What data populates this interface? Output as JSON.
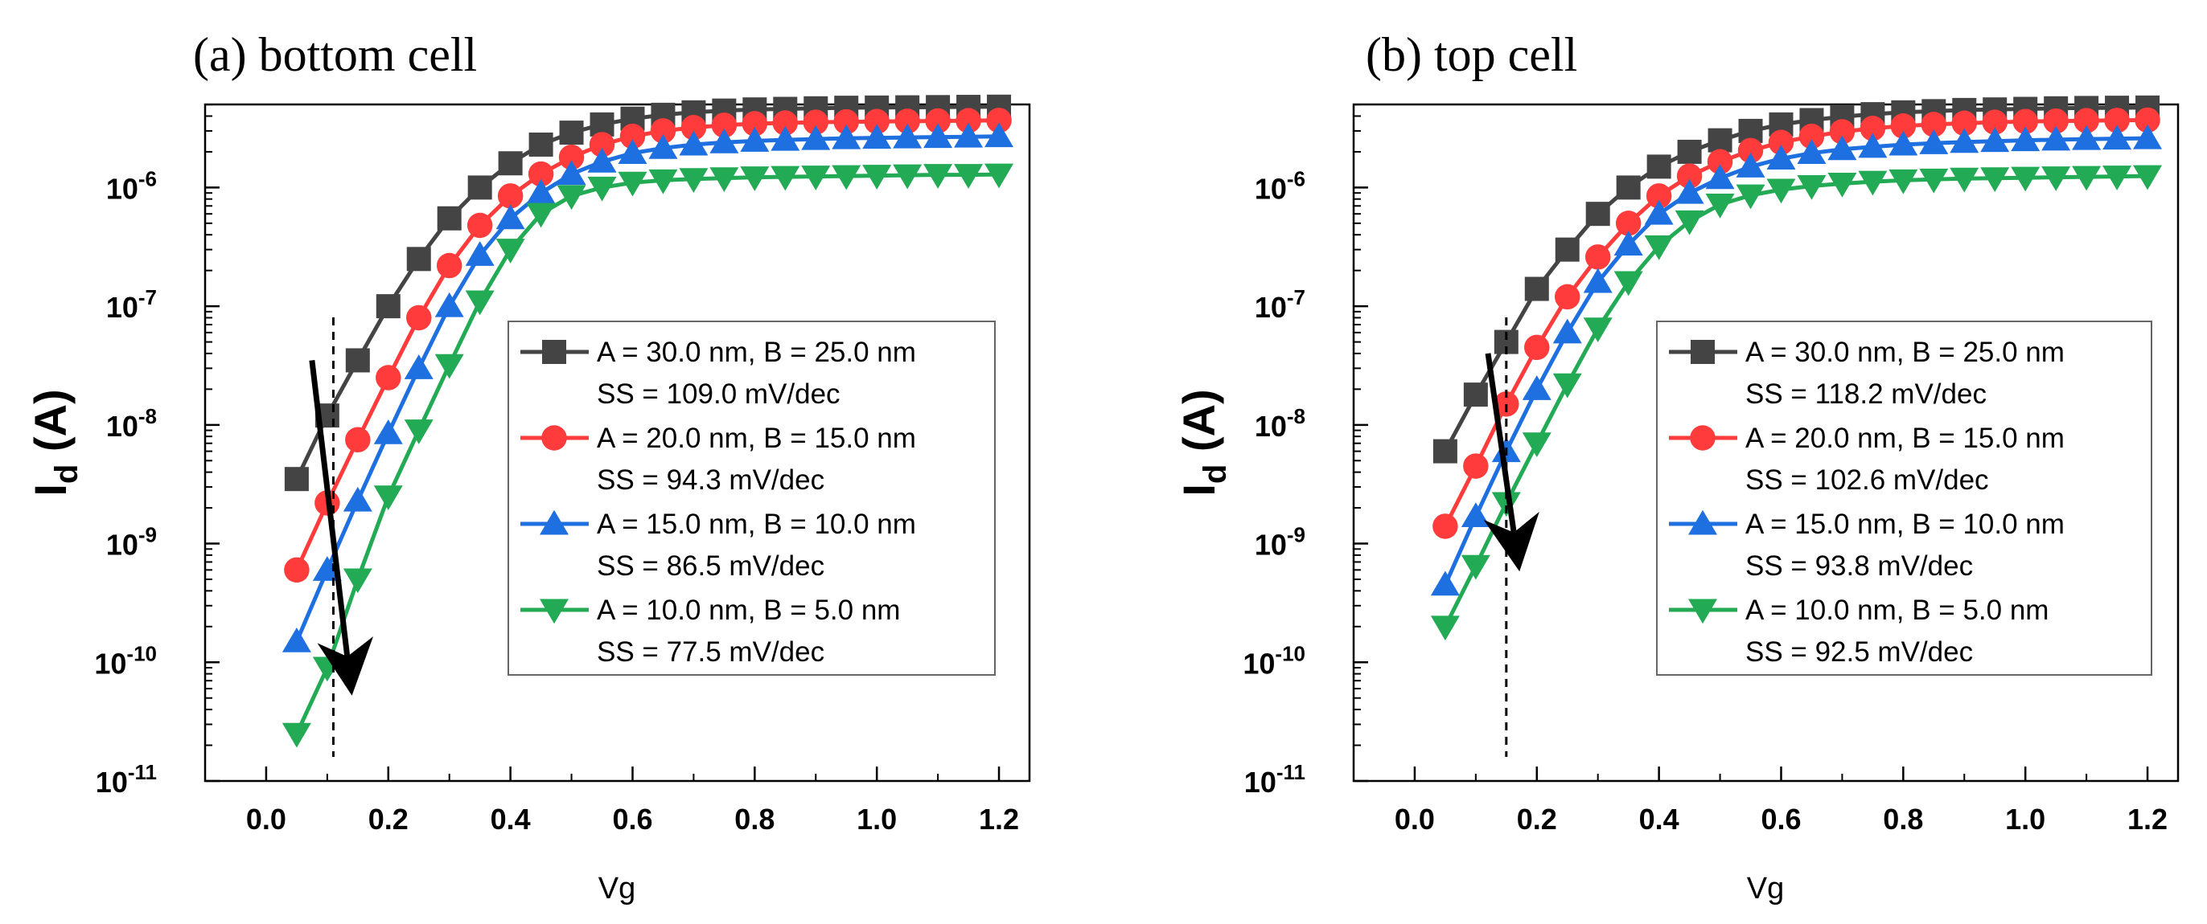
{
  "chart_data": [
    {
      "type": "line",
      "title": "(a) bottom cell",
      "xlabel": "Vg",
      "ylabel_main": "I",
      "ylabel_sub": "d",
      "ylabel_unit": " (A)",
      "xlim": [
        -0.1,
        1.25
      ],
      "ylim_log10": [
        -11,
        -5.3
      ],
      "yscale": "log",
      "grid": false,
      "legend_position": "center-right",
      "xticks": [
        0.0,
        0.2,
        0.4,
        0.6,
        0.8,
        1.0,
        1.2
      ],
      "xtick_labels": [
        "0.0",
        "0.2",
        "0.4",
        "0.6",
        "0.8",
        "1.0",
        "1.2"
      ],
      "yticks_log10": [
        -11,
        -10,
        -9,
        -8,
        -7,
        -6
      ],
      "ytick_base": [
        "10",
        "10",
        "10",
        "10",
        "10",
        "10"
      ],
      "ytick_exp": [
        "-11",
        "-10",
        "-9",
        "-8",
        "-7",
        "-6"
      ],
      "x": [
        0.05,
        0.1,
        0.15,
        0.2,
        0.25,
        0.3,
        0.35,
        0.4,
        0.45,
        0.5,
        0.55,
        0.6,
        0.65,
        0.7,
        0.75,
        0.8,
        0.85,
        0.9,
        0.95,
        1.0,
        1.05,
        1.1,
        1.15,
        1.2
      ],
      "series": [
        {
          "name": "A = 30.0 nm, B = 25.0 nm",
          "ss": "SS = 109.0 mV/dec",
          "color": "#444444",
          "marker": "square",
          "values": [
            3.5e-09,
            1.2e-08,
            3.5e-08,
            1e-07,
            2.5e-07,
            5.5e-07,
            1e-06,
            1.6e-06,
            2.3e-06,
            2.9e-06,
            3.4e-06,
            3.8e-06,
            4.1e-06,
            4.3e-06,
            4.45e-06,
            4.55e-06,
            4.6e-06,
            4.65e-06,
            4.7e-06,
            4.72e-06,
            4.74e-06,
            4.76e-06,
            4.78e-06,
            4.8e-06
          ]
        },
        {
          "name": "A = 20.0 nm, B = 15.0 nm",
          "ss": "SS = 94.3 mV/dec",
          "color": "#ff3b3b",
          "marker": "circle",
          "values": [
            6e-10,
            2.2e-09,
            7.5e-09,
            2.5e-08,
            8e-08,
            2.2e-07,
            4.8e-07,
            8.5e-07,
            1.3e-06,
            1.8e-06,
            2.3e-06,
            2.7e-06,
            3e-06,
            3.2e-06,
            3.35e-06,
            3.45e-06,
            3.5e-06,
            3.55e-06,
            3.58e-06,
            3.6e-06,
            3.62e-06,
            3.64e-06,
            3.66e-06,
            3.68e-06
          ]
        },
        {
          "name": "A = 15.0 nm, B = 10.0 nm",
          "ss": "SS = 86.5 mV/dec",
          "color": "#1e6fe0",
          "marker": "triangle-up",
          "values": [
            1.5e-10,
            6e-10,
            2.3e-09,
            8.5e-09,
            3e-08,
            1e-07,
            2.7e-07,
            5.5e-07,
            9e-07,
            1.3e-06,
            1.65e-06,
            1.95e-06,
            2.15e-06,
            2.3e-06,
            2.4e-06,
            2.47e-06,
            2.52e-06,
            2.56e-06,
            2.6e-06,
            2.62e-06,
            2.64e-06,
            2.66e-06,
            2.68e-06,
            2.7e-06
          ]
        },
        {
          "name": "A = 10.0 nm, B = 5.0 nm",
          "ss": "SS = 77.5 mV/dec",
          "color": "#22aa55",
          "marker": "triangle-down",
          "values": [
            2.5e-11,
            9e-11,
            5e-10,
            2.5e-09,
            9e-09,
            3.2e-08,
            1.1e-07,
            3e-07,
            6e-07,
            8.5e-07,
            1e-06,
            1.1e-06,
            1.15e-06,
            1.18e-06,
            1.2e-06,
            1.22e-06,
            1.23e-06,
            1.24e-06,
            1.25e-06,
            1.26e-06,
            1.27e-06,
            1.28e-06,
            1.28e-06,
            1.29e-06
          ]
        }
      ],
      "annotations": {
        "dashed_line_x": 0.11,
        "arrow_start": {
          "x": 0.075,
          "y": 3.5e-08
        },
        "arrow_end": {
          "x": 0.135,
          "y": 9e-11
        }
      }
    },
    {
      "type": "line",
      "title": "(b) top cell",
      "xlabel": "Vg",
      "ylabel_main": "I",
      "ylabel_sub": "d",
      "ylabel_unit": " (A)",
      "xlim": [
        -0.1,
        1.25
      ],
      "ylim_log10": [
        -11,
        -5.3
      ],
      "yscale": "log",
      "grid": false,
      "legend_position": "center-right",
      "xticks": [
        0.0,
        0.2,
        0.4,
        0.6,
        0.8,
        1.0,
        1.2
      ],
      "xtick_labels": [
        "0.0",
        "0.2",
        "0.4",
        "0.6",
        "0.8",
        "1.0",
        "1.2"
      ],
      "yticks_log10": [
        -11,
        -10,
        -9,
        -8,
        -7,
        -6
      ],
      "ytick_base": [
        "10",
        "10",
        "10",
        "10",
        "10",
        "10"
      ],
      "ytick_exp": [
        "-11",
        "-10",
        "-9",
        "-8",
        "-7",
        "-6"
      ],
      "x": [
        0.05,
        0.1,
        0.15,
        0.2,
        0.25,
        0.3,
        0.35,
        0.4,
        0.45,
        0.5,
        0.55,
        0.6,
        0.65,
        0.7,
        0.75,
        0.8,
        0.85,
        0.9,
        0.95,
        1.0,
        1.05,
        1.1,
        1.15,
        1.2
      ],
      "series": [
        {
          "name": "A = 30.0 nm, B = 25.0 nm",
          "ss": "SS = 118.2 mV/dec",
          "color": "#444444",
          "marker": "square",
          "values": [
            6e-09,
            1.8e-08,
            5e-08,
            1.4e-07,
            3e-07,
            6e-07,
            1e-06,
            1.5e-06,
            2e-06,
            2.5e-06,
            3e-06,
            3.4e-06,
            3.7e-06,
            3.95e-06,
            4.15e-06,
            4.3e-06,
            4.4e-06,
            4.5e-06,
            4.55e-06,
            4.6e-06,
            4.65e-06,
            4.68e-06,
            4.7e-06,
            4.72e-06
          ]
        },
        {
          "name": "A = 20.0 nm, B = 15.0 nm",
          "ss": "SS = 102.6 mV/dec",
          "color": "#ff3b3b",
          "marker": "circle",
          "values": [
            1.4e-09,
            4.5e-09,
            1.5e-08,
            4.5e-08,
            1.2e-07,
            2.6e-07,
            5e-07,
            8.5e-07,
            1.25e-06,
            1.65e-06,
            2.05e-06,
            2.4e-06,
            2.7e-06,
            2.95e-06,
            3.15e-06,
            3.3e-06,
            3.4e-06,
            3.48e-06,
            3.55e-06,
            3.6e-06,
            3.63e-06,
            3.66e-06,
            3.68e-06,
            3.7e-06
          ]
        },
        {
          "name": "A = 15.0 nm, B = 10.0 nm",
          "ss": "SS = 93.8 mV/dec",
          "color": "#1e6fe0",
          "marker": "triangle-up",
          "values": [
            4.5e-10,
            1.7e-09,
            6e-09,
            2e-08,
            6e-08,
            1.6e-07,
            3.3e-07,
            6e-07,
            9e-07,
            1.2e-06,
            1.5e-06,
            1.75e-06,
            1.95e-06,
            2.1e-06,
            2.2e-06,
            2.3e-06,
            2.36e-06,
            2.42e-06,
            2.46e-06,
            2.5e-06,
            2.53e-06,
            2.56e-06,
            2.58e-06,
            2.6e-06
          ]
        },
        {
          "name": "A = 10.0 nm, B = 5.0 nm",
          "ss": "SS = 92.5 mV/dec",
          "color": "#22aa55",
          "marker": "triangle-down",
          "values": [
            2e-10,
            6.5e-10,
            2.2e-09,
            7e-09,
            2.2e-08,
            6.5e-08,
            1.6e-07,
            3.2e-07,
            5.2e-07,
            7.2e-07,
            8.6e-07,
            9.6e-07,
            1.03e-06,
            1.08e-06,
            1.12e-06,
            1.15e-06,
            1.17e-06,
            1.19e-06,
            1.2e-06,
            1.21e-06,
            1.22e-06,
            1.23e-06,
            1.24e-06,
            1.25e-06
          ]
        }
      ],
      "annotations": {
        "dashed_line_x": 0.15,
        "arrow_start": {
          "x": 0.12,
          "y": 4e-08
        },
        "arrow_end": {
          "x": 0.165,
          "y": 1e-09
        }
      }
    }
  ]
}
